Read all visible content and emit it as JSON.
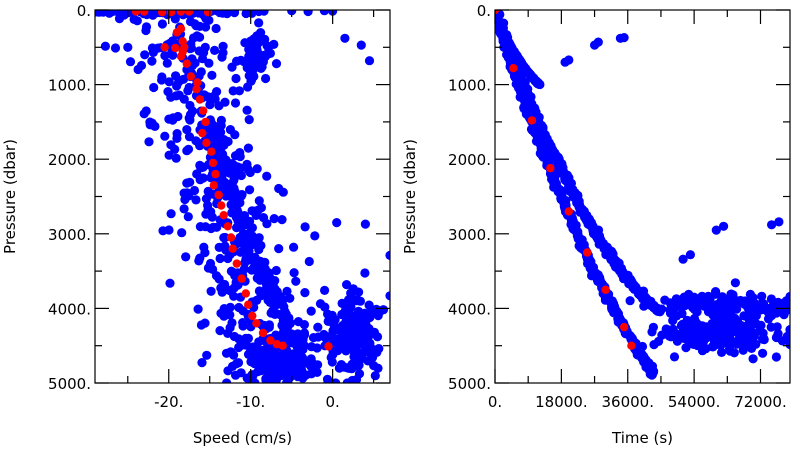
{
  "chart_data": [
    {
      "type": "scatter",
      "xlabel": "Speed (cm/s)",
      "ylabel": "Pressure (dbar)",
      "xlim": [
        -29,
        7
      ],
      "ylim": [
        5000,
        0
      ],
      "y_inverted": true,
      "grid": false,
      "x_ticks": [
        {
          "value": -20,
          "label": "-20."
        },
        {
          "value": -10,
          "label": "-10."
        },
        {
          "value": 0,
          "label": "0."
        }
      ],
      "y_ticks": [
        {
          "value": 0,
          "label": "0."
        },
        {
          "value": 1000,
          "label": "1000."
        },
        {
          "value": 2000,
          "label": "2000."
        },
        {
          "value": 3000,
          "label": "3000."
        },
        {
          "value": 4000,
          "label": "4000."
        },
        {
          "value": 5000,
          "label": "5000."
        }
      ],
      "colors": {
        "scatter": "#0000ff",
        "profile": "#ff0000"
      },
      "series": [
        {
          "color": "#0000ff",
          "bands": [
            {
              "points": [
                [
                  -19,
                  0
                ],
                [
                  -18.5,
                  300
                ],
                [
                  -17.8,
                  600
                ],
                [
                  -17,
                  900
                ],
                [
                  -16.5,
                  1200
                ],
                [
                  -15.8,
                  1500
                ],
                [
                  -15,
                  1800
                ],
                [
                  -14.2,
                  2100
                ],
                [
                  -13.5,
                  2400
                ],
                [
                  -12.8,
                  2700
                ],
                [
                  -12,
                  3000
                ],
                [
                  -11.2,
                  3300
                ],
                [
                  -10.5,
                  3600
                ],
                [
                  -9.8,
                  3900
                ],
                [
                  -9,
                  4200
                ],
                [
                  -8,
                  4500
                ],
                [
                  -7.5,
                  4800
                ],
                [
                  -7,
                  5000
                ]
              ],
              "spread": 3.2
            },
            {
              "points": [
                [
                  -15,
                  1500
                ],
                [
                  -13.5,
                  2000
                ],
                [
                  -12,
                  2500
                ],
                [
                  -10.5,
                  3000
                ],
                [
                  -9,
                  3400
                ],
                [
                  -7,
                  3800
                ],
                [
                  -5.5,
                  4200
                ],
                [
                  -4,
                  4500
                ]
              ],
              "spread": 0.6
            }
          ],
          "clusters": [
            {
              "cx": -6,
              "cy": 4650,
              "sx": 2.2,
              "sy": 150,
              "n": 140
            },
            {
              "cx": 2.5,
              "cy": 4350,
              "sx": 1.8,
              "sy": 300,
              "n": 160
            },
            {
              "cx": -9.3,
              "cy": 650,
              "sx": 1.0,
              "sy": 200,
              "n": 60
            },
            {
              "cx": -20,
              "cy": 30,
              "sx": 5.5,
              "sy": 15,
              "n": 60
            }
          ],
          "points": [
            [
              -28.5,
              30
            ],
            [
              -27,
              25
            ],
            [
              -25,
              30
            ],
            [
              -23,
              20
            ],
            [
              -21,
              30
            ],
            [
              -12,
              10
            ],
            [
              -9,
              20
            ],
            [
              -5,
              10
            ],
            [
              -3,
              20
            ],
            [
              -1,
              10
            ],
            [
              0,
              15
            ],
            [
              -26.5,
              510
            ],
            [
              -25,
              500
            ],
            [
              -22,
              510
            ],
            [
              -21,
              505
            ],
            [
              1.5,
              380
            ],
            [
              3.5,
              470
            ],
            [
              4.5,
              680
            ],
            [
              0.5,
              2850
            ],
            [
              4,
              2870
            ],
            [
              7,
              3290
            ]
          ]
        },
        {
          "color": "#ff0000",
          "points": [
            [
              -24,
              20
            ],
            [
              -23,
              20
            ],
            [
              -20.8,
              30
            ],
            [
              -19.7,
              30
            ],
            [
              -18.5,
              20
            ],
            [
              -17.5,
              20
            ],
            [
              -15.2,
              30
            ],
            [
              -20.5,
              500
            ],
            [
              -19.2,
              510
            ],
            [
              -19,
              300
            ],
            [
              -18.5,
              250
            ],
            [
              -18.3,
              420
            ],
            [
              -18.1,
              500
            ],
            [
              -18.3,
              560
            ],
            [
              -18.5,
              620
            ],
            [
              -17.8,
              720
            ],
            [
              -17.3,
              890
            ],
            [
              -16.5,
              970
            ],
            [
              -16.6,
              1060
            ],
            [
              -16.2,
              1200
            ],
            [
              -15.8,
              1350
            ],
            [
              -15.5,
              1500
            ],
            [
              -15.9,
              1650
            ],
            [
              -15.4,
              1780
            ],
            [
              -14.8,
              1900
            ],
            [
              -14.6,
              2050
            ],
            [
              -14.3,
              2200
            ],
            [
              -14.5,
              2350
            ],
            [
              -13.9,
              2480
            ],
            [
              -13.6,
              2620
            ],
            [
              -13.3,
              2750
            ],
            [
              -12.8,
              2900
            ],
            [
              -12.4,
              3050
            ],
            [
              -12.2,
              3200
            ],
            [
              -11.7,
              3400
            ],
            [
              -11.1,
              3600
            ],
            [
              -10.6,
              3800
            ],
            [
              -10.3,
              3950
            ],
            [
              -9.8,
              4100
            ],
            [
              -9.3,
              4200
            ],
            [
              -8.5,
              4330
            ],
            [
              -7.6,
              4430
            ],
            [
              -6.8,
              4480
            ],
            [
              -6.1,
              4500
            ],
            [
              -0.5,
              4510
            ]
          ]
        }
      ]
    },
    {
      "type": "scatter",
      "xlabel": "Time (s)",
      "ylabel": "Pressure (dbar)",
      "xlim": [
        0,
        80000
      ],
      "ylim": [
        5000,
        0
      ],
      "y_inverted": true,
      "grid": false,
      "x_ticks": [
        {
          "value": 0,
          "label": "0."
        },
        {
          "value": 18000,
          "label": "18000."
        },
        {
          "value": 36000,
          "label": "36000."
        },
        {
          "value": 54000,
          "label": "54000."
        },
        {
          "value": 72000,
          "label": "72000."
        }
      ],
      "y_ticks": [
        {
          "value": 0,
          "label": "0."
        },
        {
          "value": 1000,
          "label": "1000."
        },
        {
          "value": 2000,
          "label": "2000."
        },
        {
          "value": 3000,
          "label": "3000."
        },
        {
          "value": 4000,
          "label": "4000."
        },
        {
          "value": 5000,
          "label": "5000."
        }
      ],
      "colors": {
        "scatter": "#0000ff",
        "profile": "#ff0000"
      },
      "series": [
        {
          "color": "#0000ff",
          "curves": [
            {
              "points": [
                [
                  0,
                  0
                ],
                [
                  5000,
                  800
                ],
                [
                  10000,
                  1500
                ],
                [
                  15000,
                  2150
                ],
                [
                  20000,
                  2750
                ],
                [
                  25000,
                  3300
                ],
                [
                  30000,
                  3800
                ],
                [
                  35000,
                  4250
                ],
                [
                  40000,
                  4650
                ],
                [
                  43000,
                  4900
                ]
              ],
              "spread": 400
            },
            {
              "points": [
                [
                  0,
                  0
                ],
                [
                  5000,
                  700
                ],
                [
                  10000,
                  1300
                ],
                [
                  15000,
                  1850
                ],
                [
                  20000,
                  2350
                ],
                [
                  25000,
                  2800
                ],
                [
                  30000,
                  3200
                ],
                [
                  35000,
                  3550
                ],
                [
                  40000,
                  3850
                ],
                [
                  45000,
                  4050
                ]
              ],
              "spread": 500
            },
            {
              "points": [
                [
                  2000,
                  300
                ],
                [
                  5000,
                  550
                ],
                [
                  8000,
                  780
                ],
                [
                  11000,
                  950
                ],
                [
                  12000,
                  1000
                ]
              ],
              "spread": 100
            }
          ],
          "clusters": [
            {
              "cx": 62000,
              "cy": 3950,
              "sx": 9000,
              "sy": 80,
              "n": 160
            },
            {
              "cx": 62000,
              "cy": 4350,
              "sx": 9000,
              "sy": 120,
              "n": 160
            }
          ],
          "points": [
            [
              19000,
              700
            ],
            [
              20000,
              670
            ],
            [
              27000,
              470
            ],
            [
              28000,
              430
            ],
            [
              34000,
              380
            ],
            [
              35000,
              370
            ],
            [
              51000,
              3340
            ],
            [
              53000,
              3280
            ],
            [
              60000,
              2950
            ],
            [
              62000,
              2900
            ],
            [
              75000,
              2880
            ],
            [
              77000,
              2840
            ],
            [
              79000,
              3900
            ]
          ]
        },
        {
          "color": "#ff0000",
          "points": [
            [
              0,
              0
            ],
            [
              5000,
              780
            ],
            [
              10000,
              1480
            ],
            [
              15000,
              2120
            ],
            [
              20000,
              2700
            ],
            [
              25000,
              3250
            ],
            [
              30000,
              3750
            ],
            [
              35000,
              4250
            ],
            [
              37000,
              4500
            ]
          ]
        }
      ]
    }
  ]
}
